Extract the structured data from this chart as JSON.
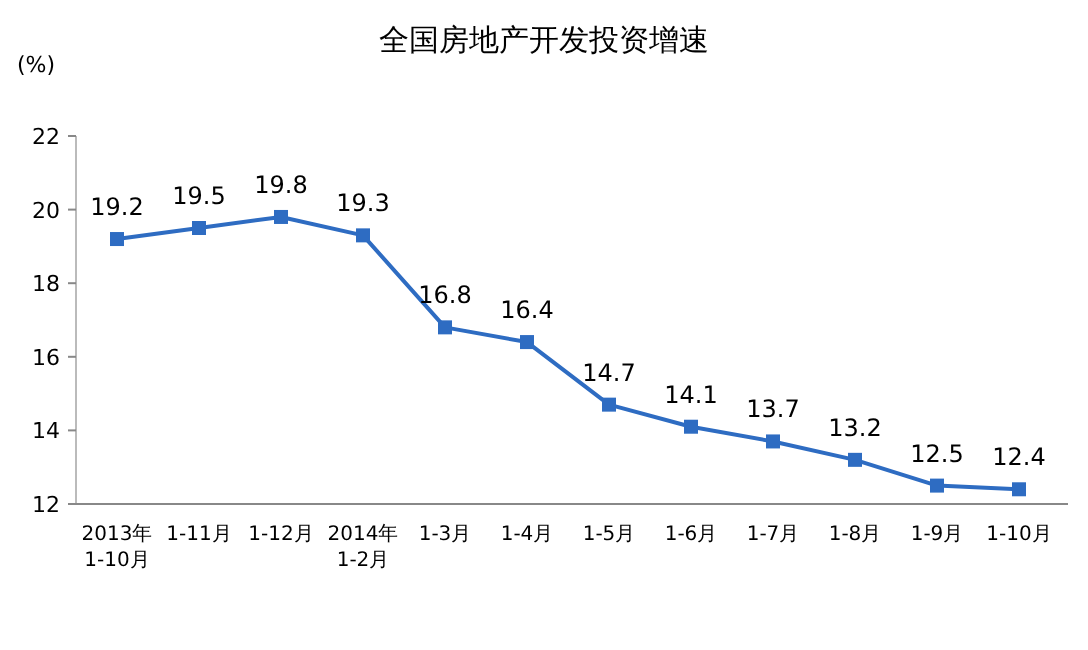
{
  "chart_data": {
    "type": "line",
    "title": "全国房地产开发投资增速",
    "ylabel": "(%)",
    "categories": [
      "2013年\n1-10月",
      "1-11月",
      "1-12月",
      "2014年\n1-2月",
      "1-3月",
      "1-4月",
      "1-5月",
      "1-6月",
      "1-7月",
      "1-8月",
      "1-9月",
      "1-10月"
    ],
    "series": [
      {
        "color": "#2e6cc2",
        "values": [
          19.2,
          19.5,
          19.8,
          19.3,
          16.8,
          16.4,
          14.7,
          14.1,
          13.7,
          13.2,
          12.5,
          12.4
        ]
      }
    ],
    "ylim": [
      12,
      22
    ],
    "yticks": [
      12,
      14,
      16,
      18,
      20,
      22
    ],
    "marker": "square",
    "data_labels": true,
    "grid": false
  }
}
